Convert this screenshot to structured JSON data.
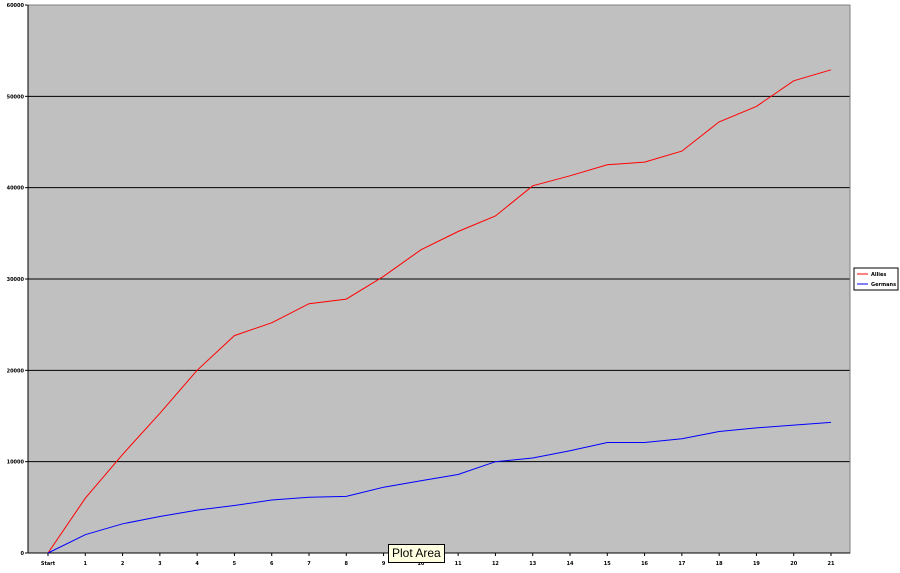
{
  "chart_data": {
    "type": "line",
    "title": "",
    "xlabel": "",
    "ylabel": "",
    "categories": [
      "Start",
      "1",
      "2",
      "3",
      "4",
      "5",
      "6",
      "7",
      "8",
      "9",
      "10",
      "11",
      "12",
      "13",
      "14",
      "15",
      "16",
      "17",
      "18",
      "19",
      "20",
      "21"
    ],
    "ylim": [
      0,
      60000
    ],
    "yticks": [
      0,
      10000,
      20000,
      30000,
      40000,
      50000,
      60000
    ],
    "grid": true,
    "legend_position": "right",
    "series": [
      {
        "name": "Allies",
        "color": "#ff0000",
        "values": [
          0,
          6000,
          10800,
          15300,
          20000,
          23800,
          25200,
          27300,
          27800,
          30300,
          33200,
          35200,
          36900,
          40200,
          41300,
          42500,
          42800,
          44000,
          47200,
          48900,
          51700,
          52900
        ]
      },
      {
        "name": "Germans",
        "color": "#0000ff",
        "values": [
          0,
          2000,
          3200,
          4000,
          4700,
          5200,
          5800,
          6100,
          6200,
          7200,
          7900,
          8600,
          10000,
          10400,
          11200,
          12100,
          12100,
          12500,
          13300,
          13700,
          14000,
          14300
        ]
      }
    ]
  },
  "colors": {
    "plot_background": "#c0c0c0",
    "gridline": "#000000",
    "axis": "#000000"
  },
  "tooltip": {
    "text": "Plot Area"
  }
}
